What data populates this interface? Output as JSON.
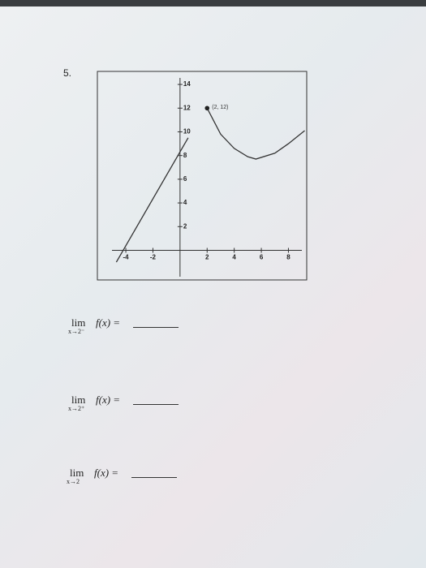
{
  "problem_number": "5.",
  "chart_data": {
    "type": "line",
    "series": [
      {
        "name": null,
        "color": "#333333",
        "x": [
          -4.7,
          0.6
        ],
        "values": [
          -1,
          9.5
        ]
      },
      {
        "name": null,
        "color": "#333333",
        "x": [
          2,
          3,
          4,
          5,
          5.6,
          7,
          8,
          9.2
        ],
        "values": [
          12,
          9.8,
          8.6,
          7.9,
          7.7,
          8.2,
          9,
          10.1
        ]
      }
    ],
    "point": {
      "x": 2,
      "y": 12,
      "label": "(2, 12)"
    },
    "xlim": [
      -6.1,
      9.35
    ],
    "ylim": [
      -2.5,
      15.1
    ],
    "xticks": [
      -4,
      -2,
      2,
      4,
      6,
      8
    ],
    "yticks": [
      2,
      4,
      6,
      8,
      10,
      12,
      14
    ]
  },
  "questions": [
    {
      "lim": "lim",
      "sub": "x→2⁻",
      "expr": "f(x) ="
    },
    {
      "lim": "lim",
      "sub": "x→2⁺",
      "expr": "f(x) ="
    },
    {
      "lim": "lim",
      "sub": "x→2",
      "expr": "f(x) ="
    }
  ]
}
